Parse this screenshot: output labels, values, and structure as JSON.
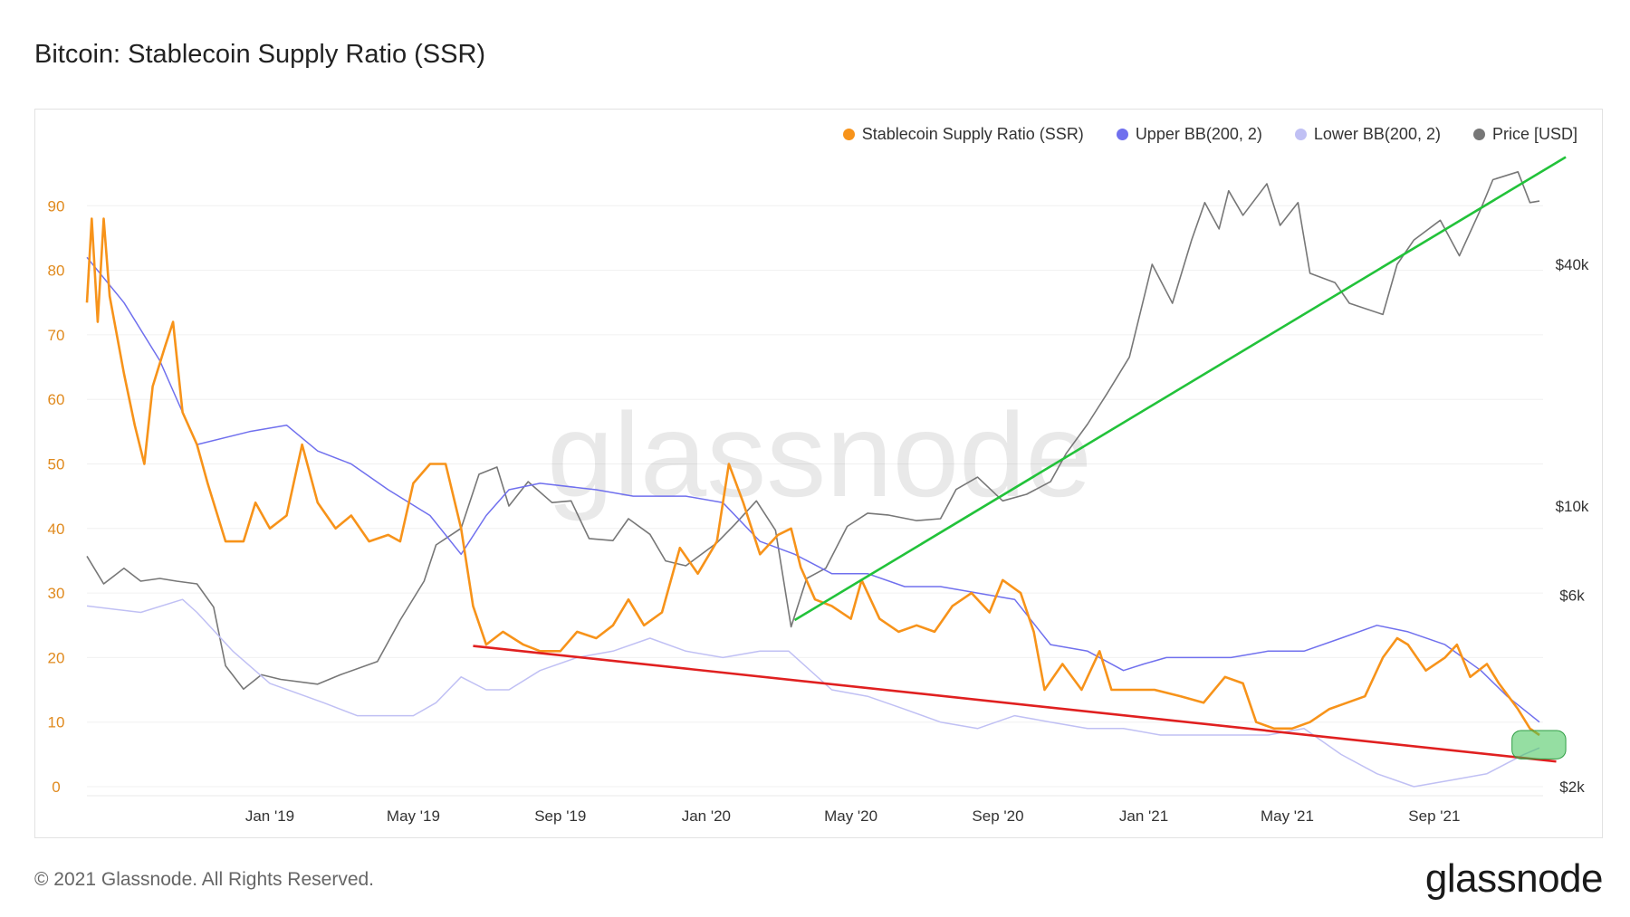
{
  "title": "Bitcoin: Stablecoin Supply Ratio (SSR)",
  "footer": "© 2021 Glassnode. All Rights Reserved.",
  "brand": "glassnode",
  "watermark": "glassnode",
  "legend": [
    {
      "label": "Stablecoin Supply Ratio (SSR)",
      "color": "#f7931a"
    },
    {
      "label": "Upper BB(200, 2)",
      "color": "#7070ee"
    },
    {
      "label": "Lower BB(200, 2)",
      "color": "#c0c0f4"
    },
    {
      "label": "Price [USD]",
      "color": "#777777"
    }
  ],
  "chart_data": {
    "type": "line",
    "title": "Bitcoin: Stablecoin Supply Ratio (SSR)",
    "x_ticks": [
      "Jan '19",
      "May '19",
      "Sep '19",
      "Jan '20",
      "May '20",
      "Sep '20",
      "Jan '21",
      "May '21",
      "Sep '21"
    ],
    "x_tick_dates": [
      "2019-01-01",
      "2019-05-01",
      "2019-09-01",
      "2020-01-01",
      "2020-05-01",
      "2020-09-01",
      "2021-01-01",
      "2021-05-01",
      "2021-09-01"
    ],
    "x_range": [
      "2018-08-01",
      "2021-12-01"
    ],
    "y_left": {
      "range": [
        0,
        100
      ],
      "ticks": [
        0,
        10,
        20,
        30,
        40,
        50,
        60,
        70,
        80,
        90
      ],
      "color": "#e08a1e"
    },
    "y_right": {
      "scale": "log",
      "range": [
        2000,
        80000
      ],
      "ticks": [
        {
          "value": 2000,
          "label": "$2k"
        },
        {
          "value": 6000,
          "label": "$6k"
        },
        {
          "value": 10000,
          "label": "$10k"
        },
        {
          "value": 40000,
          "label": "$40k"
        }
      ]
    },
    "series": [
      {
        "name": "Stablecoin Supply Ratio (SSR)",
        "color": "#f7931a",
        "axis": "left",
        "points": [
          [
            "2018-08-01",
            75
          ],
          [
            "2018-08-05",
            88
          ],
          [
            "2018-08-10",
            72
          ],
          [
            "2018-08-15",
            88
          ],
          [
            "2018-08-20",
            76
          ],
          [
            "2018-09-01",
            64
          ],
          [
            "2018-09-10",
            56
          ],
          [
            "2018-09-18",
            50
          ],
          [
            "2018-09-25",
            62
          ],
          [
            "2018-10-05",
            68
          ],
          [
            "2018-10-12",
            72
          ],
          [
            "2018-10-20",
            58
          ],
          [
            "2018-11-01",
            53
          ],
          [
            "2018-11-10",
            47
          ],
          [
            "2018-11-25",
            38
          ],
          [
            "2018-12-10",
            38
          ],
          [
            "2018-12-20",
            44
          ],
          [
            "2019-01-01",
            40
          ],
          [
            "2019-01-15",
            42
          ],
          [
            "2019-01-28",
            53
          ],
          [
            "2019-02-10",
            44
          ],
          [
            "2019-02-25",
            40
          ],
          [
            "2019-03-10",
            42
          ],
          [
            "2019-03-25",
            38
          ],
          [
            "2019-04-10",
            39
          ],
          [
            "2019-04-20",
            38
          ],
          [
            "2019-05-01",
            47
          ],
          [
            "2019-05-15",
            50
          ],
          [
            "2019-05-28",
            50
          ],
          [
            "2019-06-10",
            40
          ],
          [
            "2019-06-20",
            28
          ],
          [
            "2019-07-01",
            22
          ],
          [
            "2019-07-15",
            24
          ],
          [
            "2019-08-01",
            22
          ],
          [
            "2019-08-15",
            21
          ],
          [
            "2019-09-01",
            21
          ],
          [
            "2019-09-15",
            24
          ],
          [
            "2019-10-01",
            23
          ],
          [
            "2019-10-15",
            25
          ],
          [
            "2019-10-28",
            29
          ],
          [
            "2019-11-10",
            25
          ],
          [
            "2019-11-25",
            27
          ],
          [
            "2019-12-10",
            37
          ],
          [
            "2019-12-25",
            33
          ],
          [
            "2020-01-10",
            38
          ],
          [
            "2020-01-20",
            50
          ],
          [
            "2020-02-01",
            44
          ],
          [
            "2020-02-15",
            36
          ],
          [
            "2020-03-01",
            39
          ],
          [
            "2020-03-12",
            40
          ],
          [
            "2020-03-20",
            34
          ],
          [
            "2020-04-01",
            29
          ],
          [
            "2020-04-15",
            28
          ],
          [
            "2020-05-01",
            26
          ],
          [
            "2020-05-10",
            32
          ],
          [
            "2020-05-25",
            26
          ],
          [
            "2020-06-10",
            24
          ],
          [
            "2020-06-25",
            25
          ],
          [
            "2020-07-10",
            24
          ],
          [
            "2020-07-25",
            28
          ],
          [
            "2020-08-10",
            30
          ],
          [
            "2020-08-25",
            27
          ],
          [
            "2020-09-05",
            32
          ],
          [
            "2020-09-20",
            30
          ],
          [
            "2020-10-01",
            24
          ],
          [
            "2020-10-10",
            15
          ],
          [
            "2020-10-25",
            19
          ],
          [
            "2020-11-10",
            15
          ],
          [
            "2020-11-25",
            21
          ],
          [
            "2020-12-05",
            15
          ],
          [
            "2020-12-20",
            15
          ],
          [
            "2021-01-10",
            15
          ],
          [
            "2021-02-01",
            14
          ],
          [
            "2021-02-20",
            13
          ],
          [
            "2021-03-10",
            17
          ],
          [
            "2021-03-25",
            16
          ],
          [
            "2021-04-05",
            10
          ],
          [
            "2021-04-20",
            9
          ],
          [
            "2021-05-05",
            9
          ],
          [
            "2021-05-20",
            10
          ],
          [
            "2021-06-05",
            12
          ],
          [
            "2021-06-20",
            13
          ],
          [
            "2021-07-05",
            14
          ],
          [
            "2021-07-20",
            20
          ],
          [
            "2021-08-01",
            23
          ],
          [
            "2021-08-10",
            22
          ],
          [
            "2021-08-25",
            18
          ],
          [
            "2021-09-10",
            20
          ],
          [
            "2021-09-20",
            22
          ],
          [
            "2021-10-01",
            17
          ],
          [
            "2021-10-15",
            19
          ],
          [
            "2021-10-25",
            16
          ],
          [
            "2021-11-10",
            12
          ],
          [
            "2021-11-20",
            9
          ],
          [
            "2021-11-28",
            8
          ]
        ]
      },
      {
        "name": "Upper BB(200, 2)",
        "color": "#7070ee",
        "axis": "left",
        "points": [
          [
            "2018-08-01",
            82
          ],
          [
            "2018-09-01",
            75
          ],
          [
            "2018-10-01",
            66
          ],
          [
            "2018-10-20",
            58
          ],
          [
            "2018-11-01",
            53
          ],
          [
            "2018-12-15",
            55
          ],
          [
            "2019-01-15",
            56
          ],
          [
            "2019-02-10",
            52
          ],
          [
            "2019-03-10",
            50
          ],
          [
            "2019-04-10",
            46
          ],
          [
            "2019-05-15",
            42
          ],
          [
            "2019-06-10",
            36
          ],
          [
            "2019-07-01",
            42
          ],
          [
            "2019-07-20",
            46
          ],
          [
            "2019-08-15",
            47
          ],
          [
            "2019-10-01",
            46
          ],
          [
            "2019-11-01",
            45
          ],
          [
            "2019-12-15",
            45
          ],
          [
            "2020-01-15",
            44
          ],
          [
            "2020-02-15",
            38
          ],
          [
            "2020-03-15",
            36
          ],
          [
            "2020-04-15",
            33
          ],
          [
            "2020-05-15",
            33
          ],
          [
            "2020-06-15",
            31
          ],
          [
            "2020-07-15",
            31
          ],
          [
            "2020-08-15",
            30
          ],
          [
            "2020-09-15",
            29
          ],
          [
            "2020-10-15",
            22
          ],
          [
            "2020-11-15",
            21
          ],
          [
            "2020-12-15",
            18
          ],
          [
            "2021-01-01",
            19
          ],
          [
            "2021-01-20",
            20
          ],
          [
            "2021-02-15",
            20
          ],
          [
            "2021-03-15",
            20
          ],
          [
            "2021-04-15",
            21
          ],
          [
            "2021-05-15",
            21
          ],
          [
            "2021-06-15",
            23
          ],
          [
            "2021-07-15",
            25
          ],
          [
            "2021-08-10",
            24
          ],
          [
            "2021-09-10",
            22
          ],
          [
            "2021-10-10",
            18
          ],
          [
            "2021-11-01",
            14
          ],
          [
            "2021-11-28",
            10
          ]
        ]
      },
      {
        "name": "Lower BB(200, 2)",
        "color": "#c0c0f4",
        "axis": "left",
        "points": [
          [
            "2018-08-01",
            28
          ],
          [
            "2018-09-15",
            27
          ],
          [
            "2018-10-20",
            29
          ],
          [
            "2018-11-01",
            27
          ],
          [
            "2018-12-01",
            21
          ],
          [
            "2019-01-01",
            16
          ],
          [
            "2019-02-15",
            13
          ],
          [
            "2019-03-15",
            11
          ],
          [
            "2019-05-01",
            11
          ],
          [
            "2019-05-20",
            13
          ],
          [
            "2019-06-10",
            17
          ],
          [
            "2019-07-01",
            15
          ],
          [
            "2019-07-20",
            15
          ],
          [
            "2019-08-15",
            18
          ],
          [
            "2019-09-15",
            20
          ],
          [
            "2019-10-15",
            21
          ],
          [
            "2019-11-15",
            23
          ],
          [
            "2019-12-15",
            21
          ],
          [
            "2020-01-15",
            20
          ],
          [
            "2020-02-15",
            21
          ],
          [
            "2020-03-10",
            21
          ],
          [
            "2020-04-15",
            15
          ],
          [
            "2020-05-15",
            14
          ],
          [
            "2020-06-15",
            12
          ],
          [
            "2020-07-15",
            10
          ],
          [
            "2020-08-15",
            9
          ],
          [
            "2020-09-15",
            11
          ],
          [
            "2020-10-15",
            10
          ],
          [
            "2020-11-15",
            9
          ],
          [
            "2020-12-15",
            9
          ],
          [
            "2021-01-15",
            8
          ],
          [
            "2021-02-15",
            8
          ],
          [
            "2021-03-15",
            8
          ],
          [
            "2021-04-15",
            8
          ],
          [
            "2021-05-15",
            9
          ],
          [
            "2021-06-15",
            5
          ],
          [
            "2021-07-15",
            2
          ],
          [
            "2021-08-15",
            0
          ],
          [
            "2021-09-15",
            1
          ],
          [
            "2021-10-15",
            2
          ],
          [
            "2021-11-15",
            5
          ],
          [
            "2021-11-28",
            6
          ]
        ]
      },
      {
        "name": "Price [USD]",
        "color": "#777777",
        "axis": "right",
        "points": [
          [
            "2018-08-01",
            7500
          ],
          [
            "2018-08-15",
            6400
          ],
          [
            "2018-09-01",
            7000
          ],
          [
            "2018-09-15",
            6500
          ],
          [
            "2018-10-01",
            6600
          ],
          [
            "2018-10-15",
            6500
          ],
          [
            "2018-11-01",
            6400
          ],
          [
            "2018-11-15",
            5600
          ],
          [
            "2018-11-25",
            4000
          ],
          [
            "2018-12-10",
            3500
          ],
          [
            "2018-12-25",
            3800
          ],
          [
            "2019-01-10",
            3700
          ],
          [
            "2019-02-10",
            3600
          ],
          [
            "2019-03-01",
            3800
          ],
          [
            "2019-04-01",
            4100
          ],
          [
            "2019-04-20",
            5200
          ],
          [
            "2019-05-10",
            6500
          ],
          [
            "2019-05-20",
            8000
          ],
          [
            "2019-06-10",
            8800
          ],
          [
            "2019-06-25",
            12000
          ],
          [
            "2019-07-10",
            12500
          ],
          [
            "2019-07-20",
            10000
          ],
          [
            "2019-08-05",
            11500
          ],
          [
            "2019-08-25",
            10200
          ],
          [
            "2019-09-10",
            10300
          ],
          [
            "2019-09-25",
            8300
          ],
          [
            "2019-10-15",
            8200
          ],
          [
            "2019-10-28",
            9300
          ],
          [
            "2019-11-15",
            8500
          ],
          [
            "2019-11-28",
            7300
          ],
          [
            "2019-12-15",
            7100
          ],
          [
            "2020-01-10",
            8100
          ],
          [
            "2020-01-25",
            9000
          ],
          [
            "2020-02-12",
            10300
          ],
          [
            "2020-02-28",
            8700
          ],
          [
            "2020-03-12",
            5000
          ],
          [
            "2020-03-25",
            6600
          ],
          [
            "2020-04-10",
            7000
          ],
          [
            "2020-04-28",
            8900
          ],
          [
            "2020-05-15",
            9600
          ],
          [
            "2020-06-01",
            9500
          ],
          [
            "2020-06-25",
            9200
          ],
          [
            "2020-07-15",
            9300
          ],
          [
            "2020-07-28",
            11000
          ],
          [
            "2020-08-15",
            11800
          ],
          [
            "2020-09-05",
            10300
          ],
          [
            "2020-09-25",
            10700
          ],
          [
            "2020-10-15",
            11500
          ],
          [
            "2020-10-28",
            13500
          ],
          [
            "2020-11-15",
            16000
          ],
          [
            "2020-12-01",
            19000
          ],
          [
            "2020-12-20",
            23500
          ],
          [
            "2021-01-08",
            40000
          ],
          [
            "2021-01-25",
            32000
          ],
          [
            "2021-02-10",
            46000
          ],
          [
            "2021-02-21",
            57000
          ],
          [
            "2021-03-05",
            49000
          ],
          [
            "2021-03-13",
            61000
          ],
          [
            "2021-03-25",
            53000
          ],
          [
            "2021-04-14",
            63500
          ],
          [
            "2021-04-25",
            50000
          ],
          [
            "2021-05-10",
            57000
          ],
          [
            "2021-05-20",
            38000
          ],
          [
            "2021-06-10",
            36000
          ],
          [
            "2021-06-22",
            32000
          ],
          [
            "2021-07-20",
            30000
          ],
          [
            "2021-08-01",
            40000
          ],
          [
            "2021-08-15",
            46000
          ],
          [
            "2021-09-06",
            51500
          ],
          [
            "2021-09-22",
            42000
          ],
          [
            "2021-10-10",
            55000
          ],
          [
            "2021-10-20",
            65000
          ],
          [
            "2021-11-10",
            68000
          ],
          [
            "2021-11-20",
            57000
          ],
          [
            "2021-11-28",
            57500
          ]
        ]
      }
    ],
    "annotations": [
      {
        "type": "trendline",
        "color": "#22c23a",
        "from": [
          "2020-03-15",
          5200
        ],
        "to": [
          "2021-12-20",
          74000
        ],
        "axis": "right"
      },
      {
        "type": "trendline",
        "color": "#e02020",
        "from": [
          "2019-06-20",
          21.8
        ],
        "to": [
          "2021-12-12",
          3.9
        ],
        "axis": "left"
      },
      {
        "type": "highlight",
        "color": "#3ec255",
        "from": [
          "2021-11-05",
          4.3
        ],
        "to": [
          "2021-12-20",
          8.7
        ],
        "axis": "left"
      }
    ]
  }
}
